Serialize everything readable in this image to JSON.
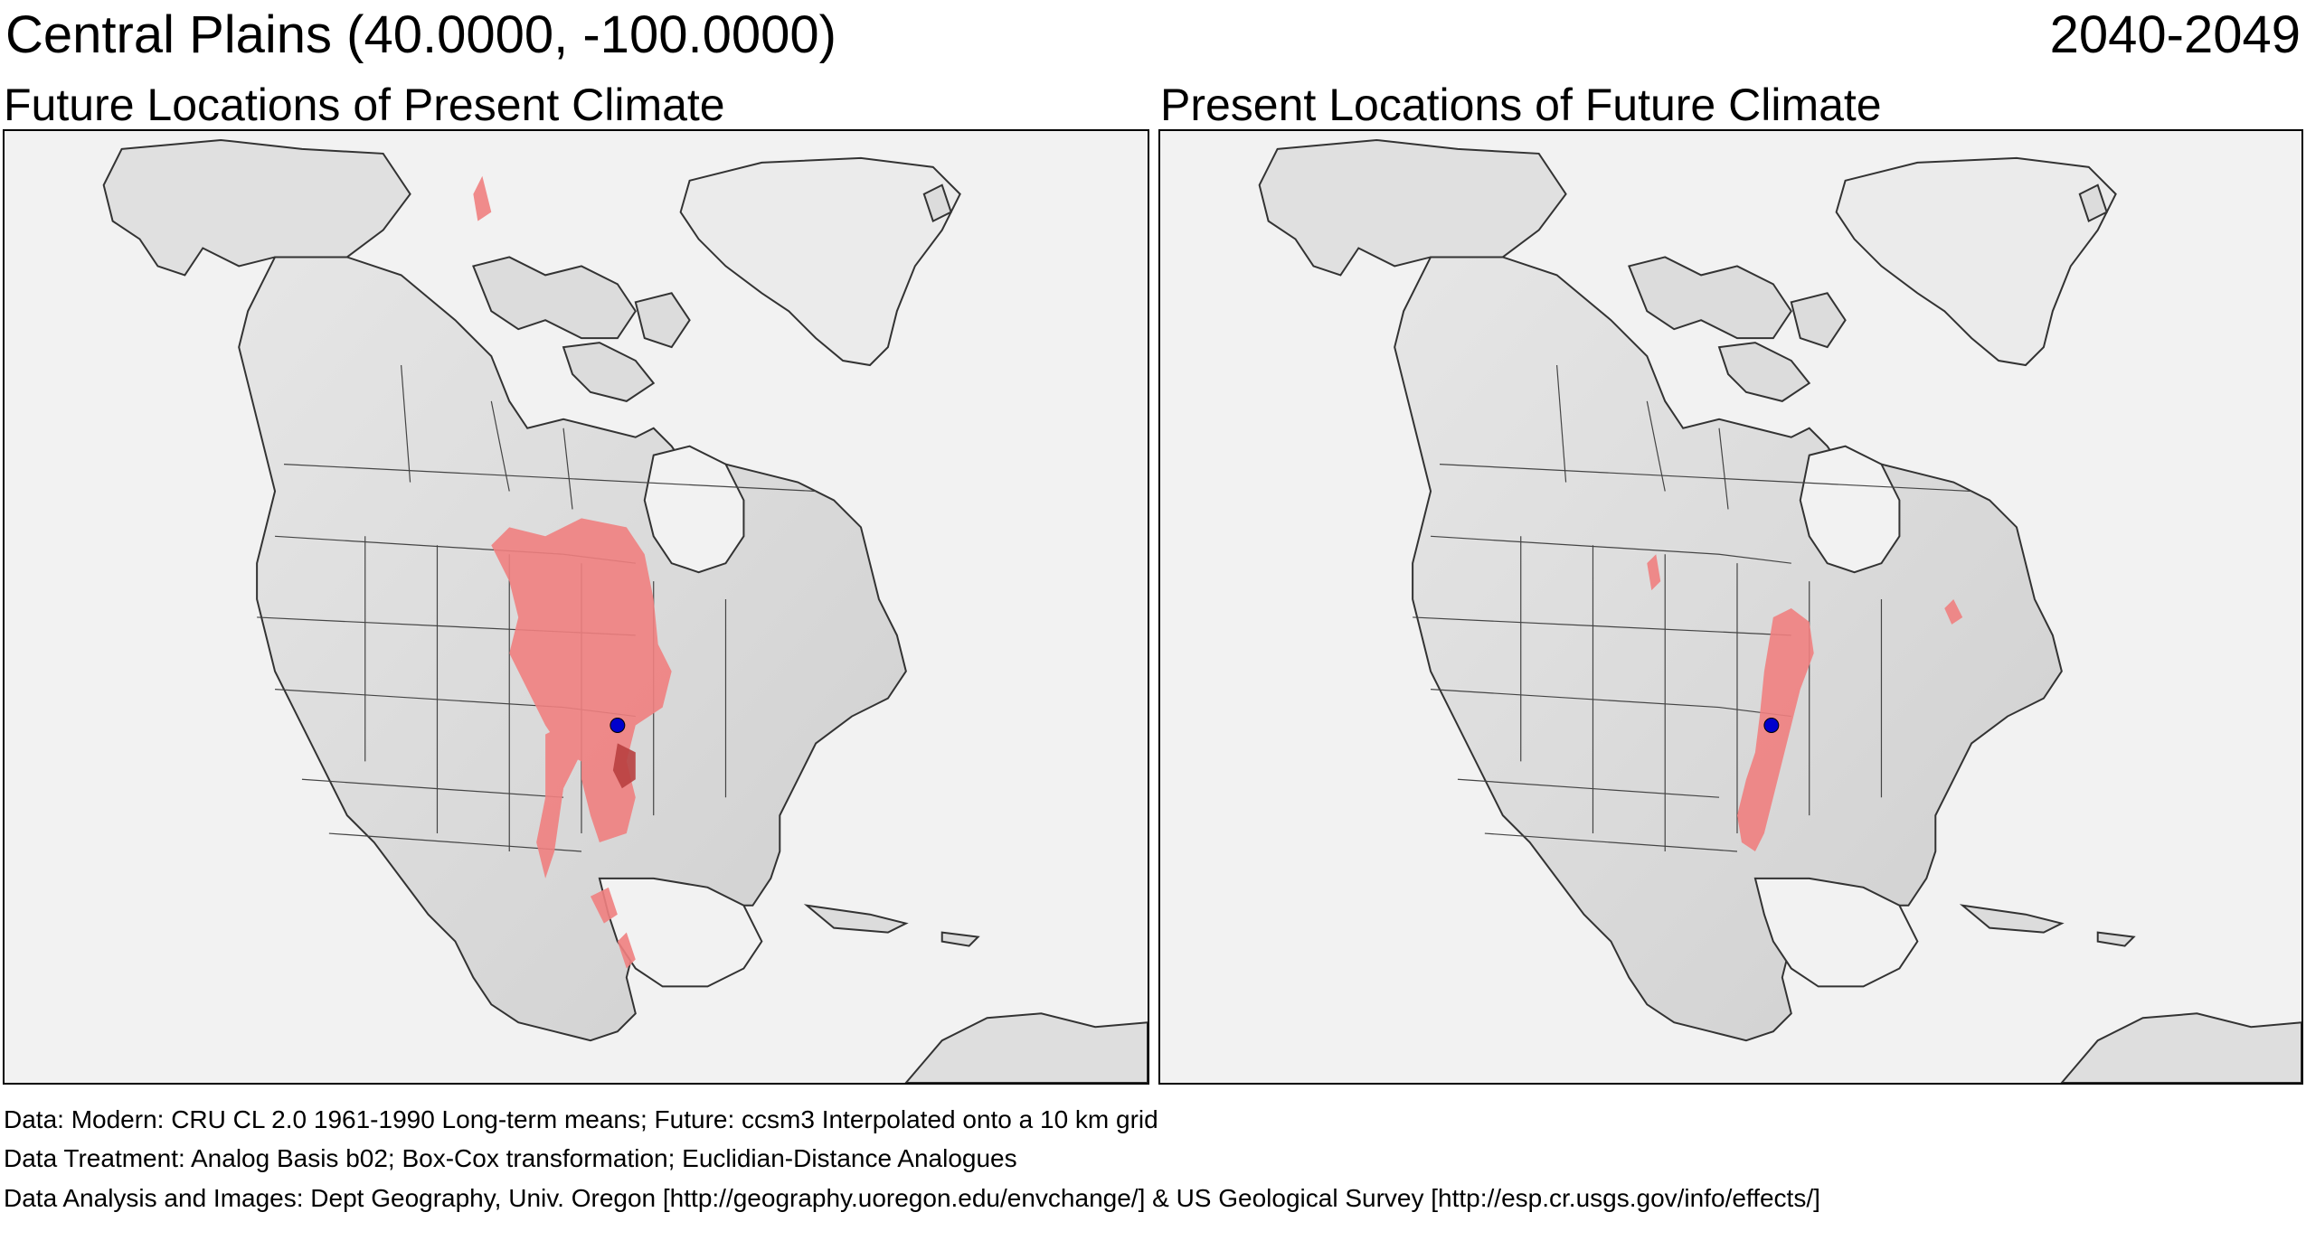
{
  "header": {
    "title": "Central Plains  (40.0000, -100.0000)",
    "period": "2040-2049"
  },
  "panels": [
    {
      "title": "Future Locations of Present Climate"
    },
    {
      "title": "Present Locations of Future Climate"
    }
  ],
  "colors": {
    "analog_region": "#f08080",
    "analog_region_dark": "#b84040",
    "target_point": "#0000cc",
    "land": "#d9d9d9",
    "water": "#f2f2f2",
    "border": "#000000"
  },
  "target_point": {
    "lat": 40.0,
    "lon": -100.0
  },
  "footer": {
    "data": "Data:  Modern: CRU CL 2.0 1961-1990 Long-term means; Future: ccsm3 Interpolated onto a 10 km grid",
    "treatment": "Data Treatment:  Analog Basis b02; Box-Cox transformation; Euclidian-Distance Analogues",
    "analysis": "Data Analysis and Images:  Dept Geography, Univ. Oregon [http://geography.uoregon.edu/envchange/] & US Geological Survey [http://esp.cr.usgs.gov/info/effects/]"
  }
}
